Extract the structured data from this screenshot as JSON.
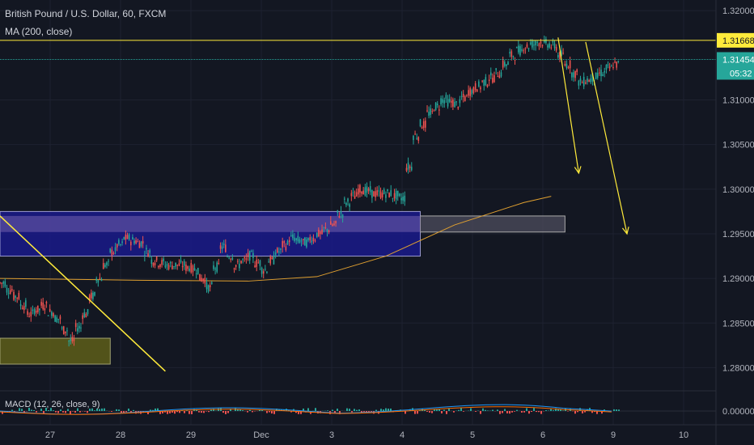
{
  "header": {
    "title": "British Pound / U.S. Dollar, 60, FXCM",
    "ma_label": "MA (200, close)",
    "macd_label": "MACD (12, 26, close, 9)"
  },
  "price_axis": {
    "ticks": [
      "1.32000",
      "1.31668",
      "1.31454",
      "1.31000",
      "1.30500",
      "1.30000",
      "1.29500",
      "1.29000",
      "1.28500",
      "1.28000"
    ],
    "tick_values": [
      1.32,
      1.31,
      1.305,
      1.3,
      1.295,
      1.29,
      1.285,
      1.28
    ],
    "tick_labels": [
      "1.32000",
      "1.31000",
      "1.30500",
      "1.30000",
      "1.29500",
      "1.29000",
      "1.28500",
      "1.28000"
    ],
    "resistance_label": "1.31668",
    "last_price_label": "1.31454",
    "countdown": "05:32",
    "macd_tick_label": "0.00000"
  },
  "time_axis": {
    "labels": [
      "27",
      "28",
      "29",
      "Dec",
      "3",
      "4",
      "5",
      "6",
      "9",
      "10"
    ]
  },
  "colors": {
    "background": "#131722",
    "up": "#26a69a",
    "down": "#ef5350",
    "ma": "#e0a030",
    "resistance": "#ffeb3b",
    "last_price": "#26a69a",
    "zone_blue": "#1a1a8a",
    "zone_olive": "#5a5a1a",
    "arrow": "#ffeb3b"
  },
  "chart_data": {
    "type": "candlestick",
    "title": "British Pound / U.S. Dollar, 60, FXCM",
    "ylim": [
      1.2775,
      1.3212
    ],
    "y_scale": "linear",
    "grid": true,
    "legend": "top-left",
    "resistance_level": 1.31668,
    "last_price": 1.31454,
    "close_path": [
      [
        0,
        1.2895
      ],
      [
        2,
        1.288
      ],
      [
        4,
        1.286
      ],
      [
        6,
        1.287
      ],
      [
        8,
        1.2855
      ],
      [
        10,
        1.283
      ],
      [
        12,
        1.286
      ],
      [
        14,
        1.29
      ],
      [
        16,
        1.293
      ],
      [
        18,
        1.2945
      ],
      [
        20,
        1.294
      ],
      [
        22,
        1.292
      ],
      [
        24,
        1.2915
      ],
      [
        26,
        1.2915
      ],
      [
        28,
        1.291
      ],
      [
        30,
        1.289
      ],
      [
        32,
        1.2935
      ],
      [
        34,
        1.2915
      ],
      [
        36,
        1.2925
      ],
      [
        38,
        1.291
      ],
      [
        40,
        1.293
      ],
      [
        42,
        1.2945
      ],
      [
        44,
        1.294
      ],
      [
        46,
        1.295
      ],
      [
        48,
        1.296
      ],
      [
        50,
        1.2985
      ],
      [
        52,
        1.3
      ],
      [
        54,
        1.2995
      ],
      [
        56,
        1.2995
      ],
      [
        58,
        1.299
      ],
      [
        60,
        1.306
      ],
      [
        62,
        1.3085
      ],
      [
        64,
        1.31
      ],
      [
        66,
        1.3095
      ],
      [
        68,
        1.311
      ],
      [
        70,
        1.312
      ],
      [
        72,
        1.313
      ],
      [
        74,
        1.315
      ],
      [
        76,
        1.316
      ],
      [
        78,
        1.3165
      ],
      [
        80,
        1.316
      ],
      [
        82,
        1.314
      ],
      [
        84,
        1.312
      ],
      [
        86,
        1.3125
      ],
      [
        88,
        1.3135
      ],
      [
        90,
        1.3145
      ]
    ],
    "ma200_path": [
      [
        0,
        1.29
      ],
      [
        20,
        1.2898
      ],
      [
        36,
        1.2897
      ],
      [
        46,
        1.2902
      ],
      [
        56,
        1.2925
      ],
      [
        66,
        1.296
      ],
      [
        76,
        1.2985
      ],
      [
        80,
        1.2992
      ]
    ],
    "zones": [
      {
        "label": "blue-supply-demand",
        "x_from": 0,
        "x_to": 61,
        "y_from": 1.2925,
        "y_to": 1.2975
      },
      {
        "label": "extended-box",
        "x_from": 61,
        "x_to": 82,
        "y_from": 1.2952,
        "y_to": 1.297
      },
      {
        "label": "olive-box",
        "x_from": 0,
        "x_to": 16,
        "y_from": 1.2804,
        "y_to": 1.2833
      }
    ],
    "trendline": {
      "from": [
        0,
        1.297
      ],
      "to": [
        24,
        1.2796
      ]
    },
    "projection_arrows": [
      {
        "from": [
          81,
          1.317
        ],
        "to": [
          84,
          1.3018
        ]
      },
      {
        "from": [
          85,
          1.3165
        ],
        "to": [
          91,
          1.295
        ]
      }
    ],
    "time_labels": [
      "27",
      "28",
      "29",
      "Dec",
      "3",
      "4",
      "5",
      "6",
      "9",
      "10"
    ]
  }
}
